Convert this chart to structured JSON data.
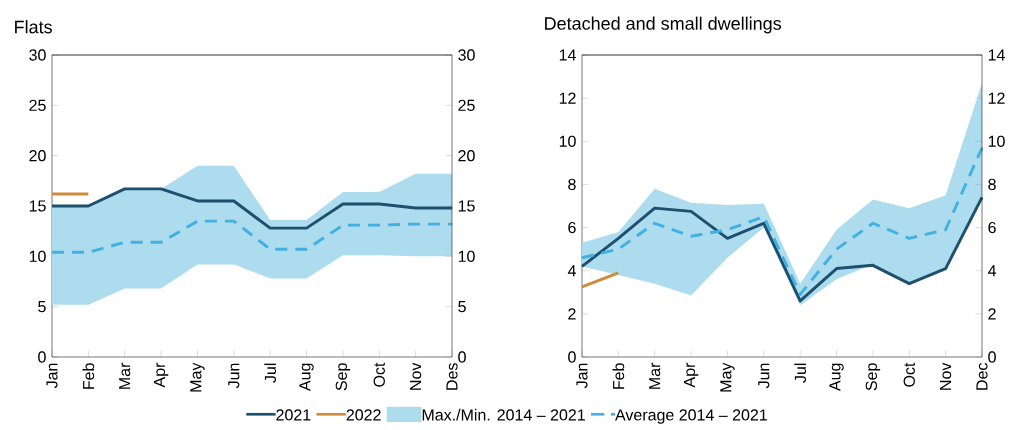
{
  "chart_data": [
    {
      "type": "line",
      "title": "Flats",
      "categories": [
        "Jan",
        "Feb",
        "Mar",
        "Apr",
        "May",
        "Jun",
        "Jul",
        "Aug",
        "Sep",
        "Oct",
        "Nov",
        "Des"
      ],
      "ylim": [
        0,
        30
      ],
      "yticks": [
        0,
        5,
        10,
        15,
        20,
        25,
        30
      ],
      "y2lim": [
        0,
        30
      ],
      "y2ticks": [
        0,
        5,
        10,
        15,
        20,
        25,
        30
      ],
      "legend": "bottom",
      "series": [
        {
          "name": "2021",
          "color": "#1d4f6e",
          "values": [
            15,
            15,
            16.7,
            16.7,
            15.5,
            15.5,
            12.8,
            12.8,
            15.2,
            15.2,
            14.8,
            14.8
          ]
        },
        {
          "name": "2022",
          "color": "#d08a3c",
          "values": [
            16.2,
            16.2,
            null,
            null,
            null,
            null,
            null,
            null,
            null,
            null,
            null,
            null
          ]
        },
        {
          "name": "Max./Min. 2014 – 2021",
          "color": "#addcee",
          "type": "area",
          "values": [
            null,
            null,
            null,
            null,
            null,
            null,
            null,
            null,
            null,
            null,
            null,
            null
          ],
          "upper": [
            15,
            15,
            16.7,
            16.7,
            19,
            19,
            13.6,
            13.6,
            16.4,
            16.4,
            18.2,
            18.2
          ],
          "lower": [
            5.2,
            5.2,
            6.8,
            6.8,
            9.2,
            9.2,
            7.8,
            7.8,
            10.1,
            10.1,
            10,
            10
          ]
        },
        {
          "name": "Average 2014 – 2021",
          "color": "#42b0e0",
          "line_style": "dashed",
          "values": [
            10.4,
            10.4,
            11.4,
            11.4,
            13.5,
            13.5,
            10.7,
            10.7,
            13.1,
            13.1,
            13.2,
            13.2
          ]
        }
      ]
    },
    {
      "type": "line",
      "title": "Detached and small dwellings",
      "categories": [
        "Jan",
        "Feb",
        "Mar",
        "Apr",
        "May",
        "Jun",
        "Jul",
        "Aug",
        "Sep",
        "Oct",
        "Nov",
        "Dec"
      ],
      "ylim": [
        0,
        14
      ],
      "yticks": [
        0,
        2,
        4,
        6,
        8,
        10,
        12,
        14
      ],
      "y2lim": [
        0,
        14
      ],
      "y2ticks": [
        0,
        2,
        4,
        6,
        8,
        10,
        12,
        14
      ],
      "series": [
        {
          "color": "#1d4f6e",
          "values": [
            4.2,
            5.5,
            6.9,
            6.75,
            5.5,
            6.2,
            2.6,
            4.1,
            4.25,
            3.4,
            4.1,
            7.4
          ]
        },
        {
          "color": "#d08a3c",
          "values": [
            3.25,
            3.9,
            null,
            null,
            null,
            null,
            null,
            null,
            null,
            null,
            null,
            null
          ]
        },
        {
          "color": "#addcee",
          "type": "area",
          "values": [
            null,
            null,
            null,
            null,
            null,
            null,
            null,
            null,
            null,
            null,
            null,
            null
          ],
          "upper": [
            5.3,
            5.8,
            7.8,
            7.15,
            7.05,
            7.1,
            3.4,
            5.9,
            7.3,
            6.9,
            7.5,
            12.7
          ],
          "lower": [
            4.2,
            3.8,
            3.4,
            2.85,
            4.6,
            6.0,
            2.4,
            3.6,
            4.3,
            3.4,
            4.1,
            7.4
          ]
        },
        {
          "color": "#42b0e0",
          "line_style": "dashed",
          "values": [
            4.6,
            5.0,
            6.2,
            5.6,
            5.9,
            6.5,
            2.9,
            5.0,
            6.2,
            5.5,
            5.9,
            9.7
          ]
        }
      ]
    }
  ]
}
